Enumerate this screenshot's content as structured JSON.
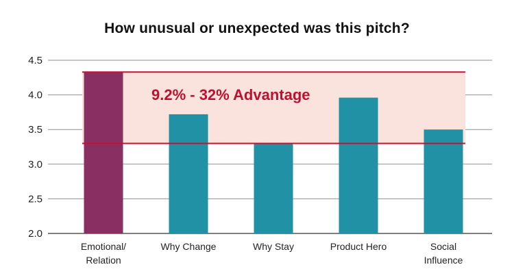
{
  "chart_data": {
    "type": "bar",
    "title": "How unusual or unexpected was this pitch?",
    "xlabel": "",
    "ylabel": "",
    "ylim": [
      2.0,
      4.5
    ],
    "yticks": [
      "2.0",
      "2.5",
      "3.0",
      "3.5",
      "4.0",
      "4.5"
    ],
    "grid": true,
    "categories": [
      [
        "Emotional/",
        "Relation"
      ],
      [
        "Why Change"
      ],
      [
        "Why Stay"
      ],
      [
        "Product Hero"
      ],
      [
        "Social",
        "Influence"
      ]
    ],
    "values": [
      4.33,
      3.72,
      3.3,
      3.96,
      3.5
    ],
    "bar_colors": [
      "#8a2f62",
      "#2191a5",
      "#2191a5",
      "#2191a5",
      "#2191a5"
    ],
    "annotation": {
      "text": "9.2% - 32% Advantage",
      "band_low": 3.3,
      "band_high": 4.33,
      "line_color": "#c8102e",
      "band_color": "#f9e3dc"
    }
  }
}
